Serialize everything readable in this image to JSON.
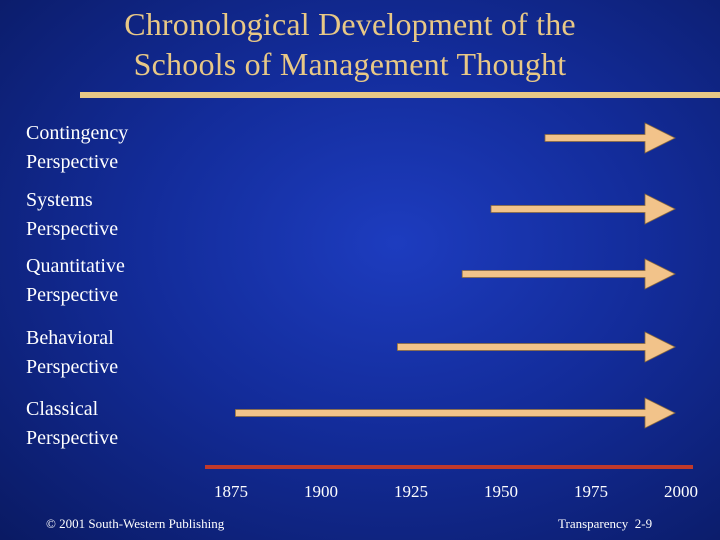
{
  "title": {
    "line1": "Chronological Development of the",
    "line2": "Schools of Management Thought"
  },
  "colors": {
    "arrow": "#f2c38a",
    "arrow_outline": "#8a6a3e",
    "title_text": "#e8c886",
    "timeline_axis": "#c0392b"
  },
  "chart_data": {
    "type": "timeline",
    "axis_ticks": [
      "1875",
      "1900",
      "1925",
      "1950",
      "1975",
      "2000"
    ],
    "xlim": [
      1875,
      2000
    ],
    "perspectives": [
      {
        "line1": "Contingency",
        "line2": "Perspective",
        "start": 1965,
        "end": 2000
      },
      {
        "line1": "Systems",
        "line2": "Perspective",
        "start": 1950,
        "end": 2000
      },
      {
        "line1": "Quantitative",
        "line2": "Perspective",
        "start": 1942,
        "end": 2000
      },
      {
        "line1": "Behavioral",
        "line2": "Perspective",
        "start": 1924,
        "end": 2000
      },
      {
        "line1": "Classical",
        "line2": "Perspective",
        "start": 1879,
        "end": 2000
      }
    ]
  },
  "footer": {
    "copyright": "© 2001 South-Western Publishing",
    "transparency": "Transparency  2-9"
  }
}
